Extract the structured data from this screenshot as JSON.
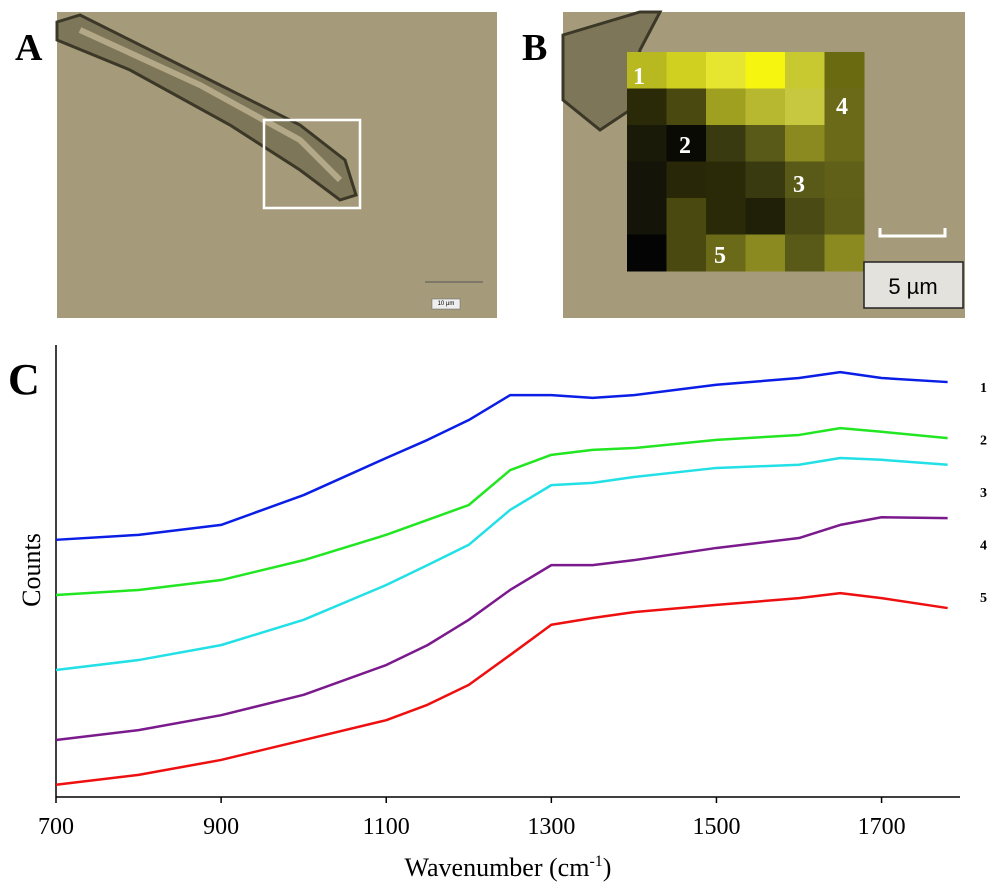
{
  "panels": {
    "A": {
      "label": "A",
      "scale_bar": "10 µm"
    },
    "B": {
      "label": "B",
      "markers": [
        "1",
        "2",
        "3",
        "4",
        "5"
      ],
      "scale_bar": "5 µm"
    },
    "C": {
      "label": "C"
    }
  },
  "chart_data": {
    "type": "line",
    "y_label": "Counts",
    "x_label": {
      "text": "Wavenumber (cm",
      "superscript": "-1",
      "suffix": ")"
    },
    "x": [
      700,
      800,
      900,
      1000,
      1100,
      1150,
      1200,
      1250,
      1300,
      1350,
      1400,
      1500,
      1600,
      1650,
      1700,
      1780
    ],
    "xlim": [
      700,
      1795
    ],
    "xticks": [
      700,
      900,
      1100,
      1300,
      1500,
      1700
    ],
    "ylim": [
      0,
      100
    ],
    "series": [
      {
        "name": "1",
        "color": "#0a1ee6",
        "values": [
          56.9,
          58.0,
          60.2,
          66.8,
          75.0,
          79.0,
          83.4,
          88.9,
          88.9,
          88.3,
          88.9,
          91.2,
          92.7,
          94.0,
          92.7,
          91.8
        ]
      },
      {
        "name": "2",
        "color": "#22e622",
        "values": [
          44.7,
          45.8,
          48.0,
          52.4,
          58.0,
          61.3,
          64.6,
          72.3,
          75.7,
          76.8,
          77.2,
          79.0,
          80.1,
          81.6,
          80.8,
          79.4
        ]
      },
      {
        "name": "3",
        "color": "#22e0e6",
        "values": [
          28.1,
          30.3,
          33.6,
          39.2,
          46.9,
          51.3,
          55.8,
          63.5,
          69.0,
          69.5,
          70.8,
          72.8,
          73.5,
          75.0,
          74.6,
          73.5
        ]
      },
      {
        "name": "4",
        "color": "#7a1a8c",
        "values": [
          12.6,
          14.8,
          18.1,
          22.6,
          29.2,
          33.6,
          39.2,
          45.8,
          51.3,
          51.3,
          52.4,
          55.1,
          57.3,
          60.2,
          61.9,
          61.7
        ]
      },
      {
        "name": "5",
        "color": "#ee1010",
        "values": [
          2.7,
          4.9,
          8.2,
          12.6,
          17.0,
          20.4,
          24.8,
          31.4,
          38.1,
          39.6,
          40.9,
          42.5,
          44.0,
          45.1,
          44.0,
          41.8
        ]
      }
    ]
  }
}
